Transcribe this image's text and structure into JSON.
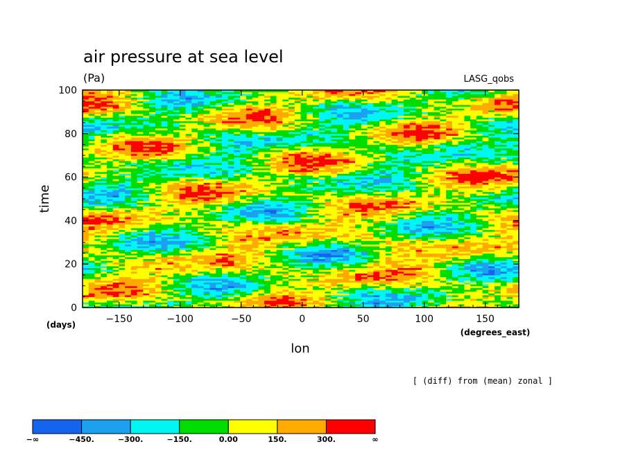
{
  "chart_data": {
    "type": "heatmap",
    "title": "air pressure at sea level",
    "units": "(Pa)",
    "source": "LASG_qobs",
    "note": "[ (diff) from (mean) zonal ]",
    "xlabel": "lon",
    "xunits": "(degrees_east)",
    "ylabel": "time",
    "yunits": "(days)",
    "xlim": [
      -180,
      177.5
    ],
    "ylim": [
      0,
      100
    ],
    "x_ticks": [
      -150,
      -100,
      -50,
      0,
      50,
      100,
      150
    ],
    "y_ticks": [
      0,
      20,
      40,
      60,
      80,
      100
    ],
    "x_tick_labels": [
      "−150",
      "−100",
      "−50",
      "0",
      "50",
      "100",
      "150"
    ],
    "y_tick_labels": [
      "0",
      "20",
      "40",
      "60",
      "80",
      "100"
    ],
    "colorbar": {
      "levels": [
        -450,
        -300,
        -150,
        0,
        150,
        300
      ],
      "labels": [
        "−∞",
        "−450.",
        "−300.",
        "−150.",
        "0.00",
        "150.",
        "300.",
        "∞"
      ],
      "colors": [
        "#1464f0",
        "#1ea0f0",
        "#00f5f5",
        "#00dc00",
        "#ffff00",
        "#ffaa00",
        "#ff0000"
      ]
    }
  }
}
